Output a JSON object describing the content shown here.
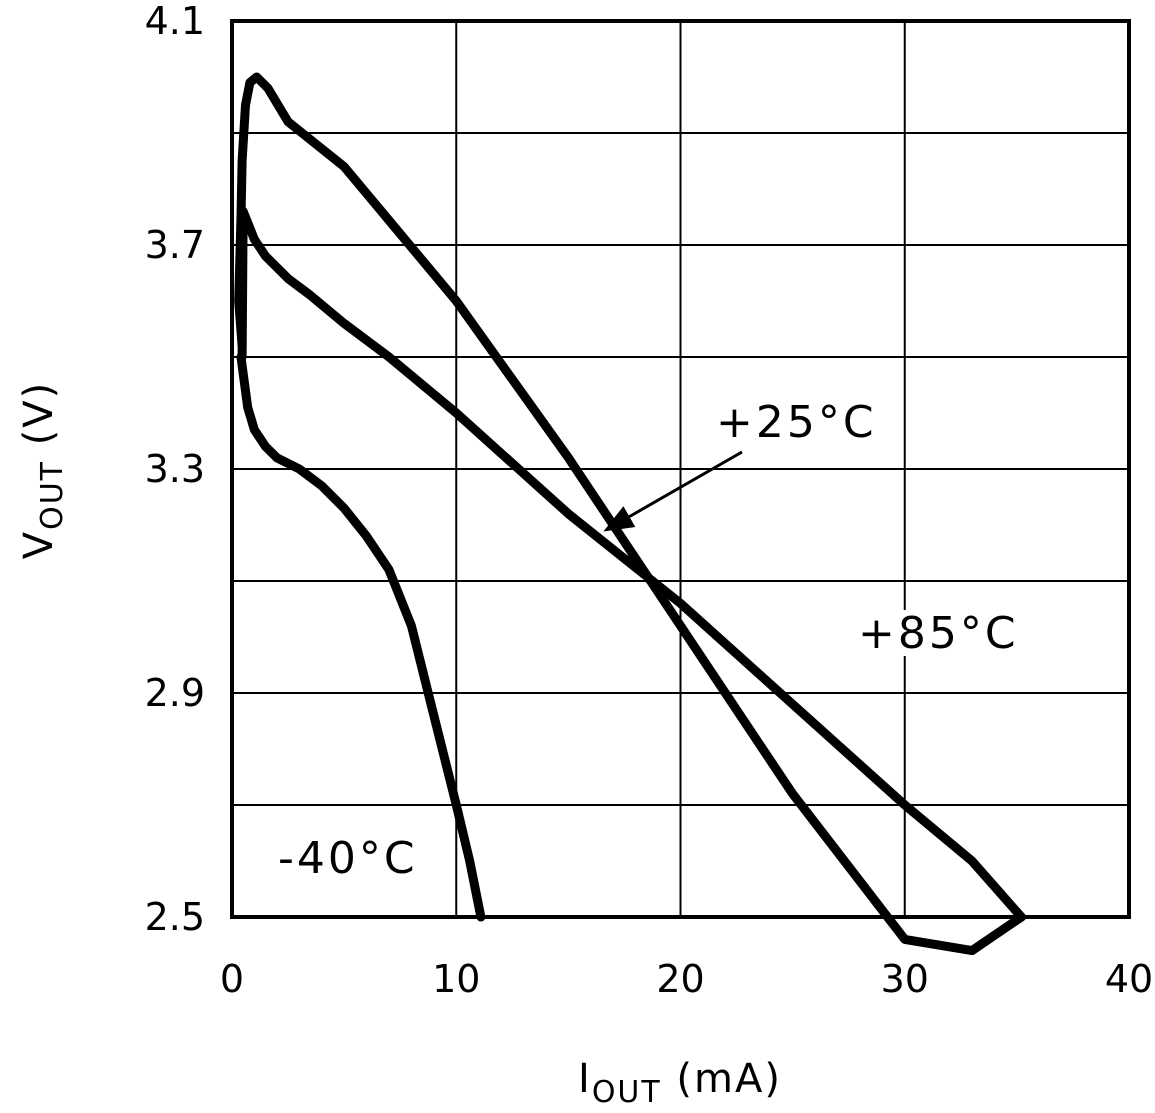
{
  "chart_data": {
    "type": "line",
    "title": "",
    "xlabel": {
      "main": "I",
      "sub": "OUT",
      "unit": " (mA)"
    },
    "ylabel": {
      "main": "V",
      "sub": "OUT",
      "unit": " (V)"
    },
    "xlim": [
      0,
      40
    ],
    "ylim": [
      2.5,
      4.1
    ],
    "x_ticks": [
      0,
      10,
      20,
      30,
      40
    ],
    "x_tick_labels": [
      "0",
      "10",
      "20",
      "30",
      "40"
    ],
    "y_ticks": [
      2.5,
      2.9,
      3.3,
      3.7,
      4.1
    ],
    "y_tick_labels": [
      "2.5",
      "2.9",
      "3.3",
      "3.7",
      "4.1"
    ],
    "x_grid": [
      10,
      20,
      30
    ],
    "y_grid": [
      2.7,
      2.9,
      3.1,
      3.3,
      3.5,
      3.7,
      3.9
    ],
    "grid": true,
    "series": [
      {
        "name": "+85°C",
        "x": [
          0.45,
          0.3,
          0.4,
          0.45,
          0.6,
          0.8,
          1.1,
          1.6,
          2.5,
          5,
          10,
          15,
          20,
          25,
          30,
          33,
          35.2
        ],
        "y": [
          3.52,
          3.6,
          3.75,
          3.85,
          3.95,
          3.99,
          4.0,
          3.98,
          3.92,
          3.84,
          3.6,
          3.32,
          3.02,
          2.72,
          2.46,
          2.44,
          2.5
        ]
      },
      {
        "name": "+25°C",
        "x": [
          0.45,
          0.5,
          1.0,
          1.5,
          2.5,
          3.5,
          5,
          7,
          10,
          15,
          20,
          25,
          30,
          33,
          35.2
        ],
        "y": [
          3.5,
          3.76,
          3.71,
          3.68,
          3.64,
          3.61,
          3.56,
          3.5,
          3.4,
          3.22,
          3.06,
          2.88,
          2.7,
          2.6,
          2.5
        ]
      },
      {
        "name": "-40°C",
        "x": [
          0.4,
          0.5,
          0.7,
          1.0,
          1.5,
          2.0,
          3.0,
          4.0,
          5.0,
          6.0,
          7.0,
          8.0,
          9.0,
          10.0,
          10.6,
          11.1
        ],
        "y": [
          3.5,
          3.47,
          3.41,
          3.37,
          3.34,
          3.32,
          3.3,
          3.27,
          3.23,
          3.18,
          3.12,
          3.02,
          2.86,
          2.7,
          2.6,
          2.5
        ]
      }
    ],
    "annotations": [
      {
        "text": "+25°C",
        "pos": "center-right, arrow pointing to +25°C curve"
      },
      {
        "text": "+85°C",
        "pos": "right, near upper curve"
      },
      {
        "text": "-40°C",
        "pos": "bottom-left"
      }
    ]
  }
}
